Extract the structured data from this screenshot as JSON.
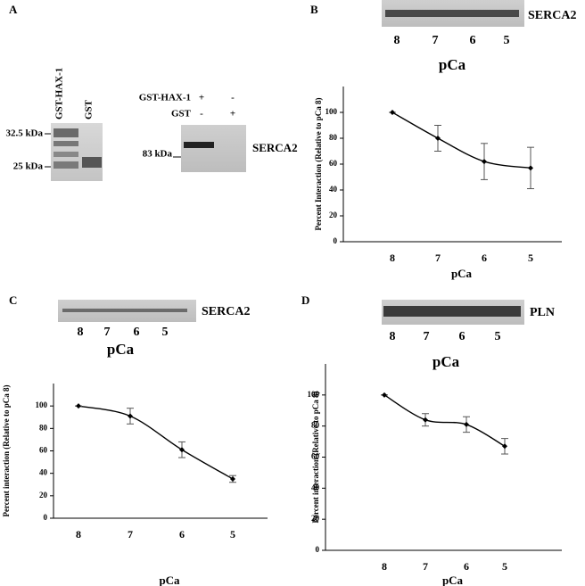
{
  "panels": {
    "a": {
      "label": "A",
      "gel_lanes": [
        "GST-HAX-1",
        "GST"
      ],
      "gel_markers": [
        "32.5 kDa",
        "25 kDa"
      ],
      "blot_rows": [
        {
          "name": "GST-HAX-1",
          "signs": [
            "+",
            "-"
          ]
        },
        {
          "name": "GST",
          "signs": [
            "-",
            "+"
          ]
        }
      ],
      "blot_marker": "83 kDa",
      "blot_label": "SERCA2"
    },
    "b": {
      "label": "B",
      "blot_label": "SERCA2",
      "blot_lanes": [
        "8",
        "7",
        "6",
        "5"
      ],
      "blot_axis": "pCa"
    },
    "c": {
      "label": "C",
      "blot_label": "SERCA2",
      "blot_lanes": [
        "8",
        "7",
        "6",
        "5"
      ],
      "blot_axis": "pCa"
    },
    "d": {
      "label": "D",
      "blot_label": "PLN",
      "blot_lanes": [
        "8",
        "7",
        "6",
        "5"
      ],
      "blot_axis": "pCa"
    }
  },
  "chart_data": [
    {
      "type": "line",
      "categories": [
        "8",
        "7",
        "6",
        "5"
      ],
      "values": [
        100,
        80,
        62,
        57
      ],
      "errors": [
        0,
        10,
        14,
        16
      ],
      "color": "#000000",
      "ylim": [
        0,
        120
      ],
      "yticks": [
        0,
        20,
        40,
        60,
        80,
        100
      ],
      "y_label": "Percent Interaction (Relative to pCa 8)",
      "x_label": "pCa"
    },
    {
      "type": "line",
      "categories": [
        "8",
        "7",
        "6",
        "5"
      ],
      "values": [
        100,
        91,
        61,
        35
      ],
      "errors": [
        0,
        7,
        7,
        3
      ],
      "color": "#000000",
      "ylim": [
        0,
        120
      ],
      "yticks": [
        0,
        20,
        40,
        60,
        80,
        100
      ],
      "y_label": "Percent interaction (Relative to pCa 8)",
      "x_label": "pCa"
    },
    {
      "type": "line",
      "categories": [
        "8",
        "7",
        "6",
        "5"
      ],
      "values": [
        100,
        84,
        81,
        67
      ],
      "errors": [
        0,
        4,
        5,
        5
      ],
      "color": "#000000",
      "ylim": [
        0,
        120
      ],
      "yticks": [
        0,
        20,
        40,
        60,
        80,
        100
      ],
      "y_label": "Percent interaction (Relative to pCa 8)",
      "x_label": "pCa"
    }
  ]
}
